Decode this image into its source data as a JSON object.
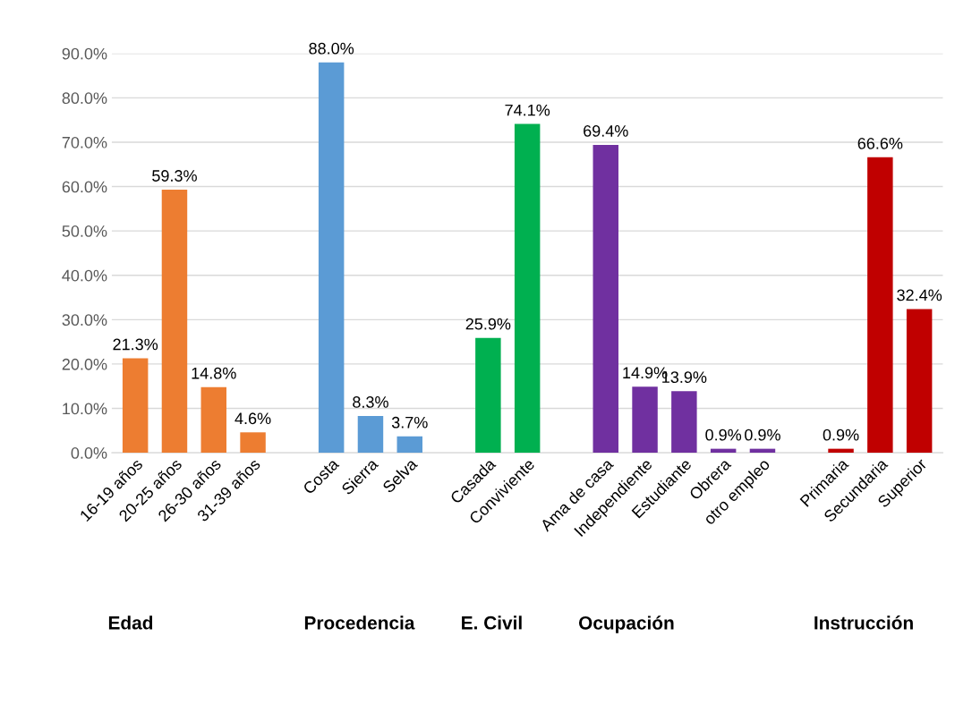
{
  "chart_data": {
    "type": "bar",
    "categories": [
      "16-19 años",
      "20-25 años",
      "26-30 años",
      "31-39 años",
      null,
      "Costa",
      "Sierra",
      "Selva",
      null,
      "Casada",
      "Conviviente",
      null,
      "Ama de casa",
      "Independiente",
      "Estudiante",
      "Obrera",
      "otro empleo",
      null,
      "Primaria",
      "Secundaria",
      "Superior"
    ],
    "values": [
      21.3,
      59.3,
      14.8,
      4.6,
      null,
      88.0,
      8.3,
      3.7,
      null,
      25.9,
      74.1,
      null,
      69.4,
      14.9,
      13.9,
      0.9,
      0.9,
      null,
      0.9,
      66.6,
      32.4
    ],
    "value_labels": [
      "21.3%",
      "59.3%",
      "14.8%",
      "4.6%",
      null,
      "88.0%",
      "8.3%",
      "3.7%",
      null,
      "25.9%",
      "74.1%",
      null,
      "69.4%",
      "14.9%",
      "13.9%",
      "0.9%",
      "0.9%",
      null,
      "0.9%",
      "66.6%",
      "32.4%"
    ],
    "colors": [
      "#ed7d31",
      "#ed7d31",
      "#ed7d31",
      "#ed7d31",
      null,
      "#5b9bd5",
      "#5b9bd5",
      "#5b9bd5",
      null,
      "#00b050",
      "#00b050",
      null,
      "#7030a0",
      "#7030a0",
      "#7030a0",
      "#7030a0",
      "#7030a0",
      null,
      "#c00000",
      "#c00000",
      "#c00000"
    ],
    "ylim": [
      0,
      90
    ],
    "yticks": [
      {
        "value": 0,
        "label": "0.0%"
      },
      {
        "value": 10,
        "label": "10.0%"
      },
      {
        "value": 20,
        "label": "20.0%"
      },
      {
        "value": 30,
        "label": "30.0%"
      },
      {
        "value": 40,
        "label": "40.0%"
      },
      {
        "value": 50,
        "label": "50.0%"
      },
      {
        "value": 60,
        "label": "60.0%"
      },
      {
        "value": 70,
        "label": "70.0%"
      },
      {
        "value": 80,
        "label": "80.0%"
      },
      {
        "value": 90,
        "label": "90.0%"
      }
    ],
    "grid": "y",
    "annotations": [
      "Edad",
      "Procedencia",
      "E. Civil",
      "Ocupación",
      "Instrucción"
    ]
  }
}
